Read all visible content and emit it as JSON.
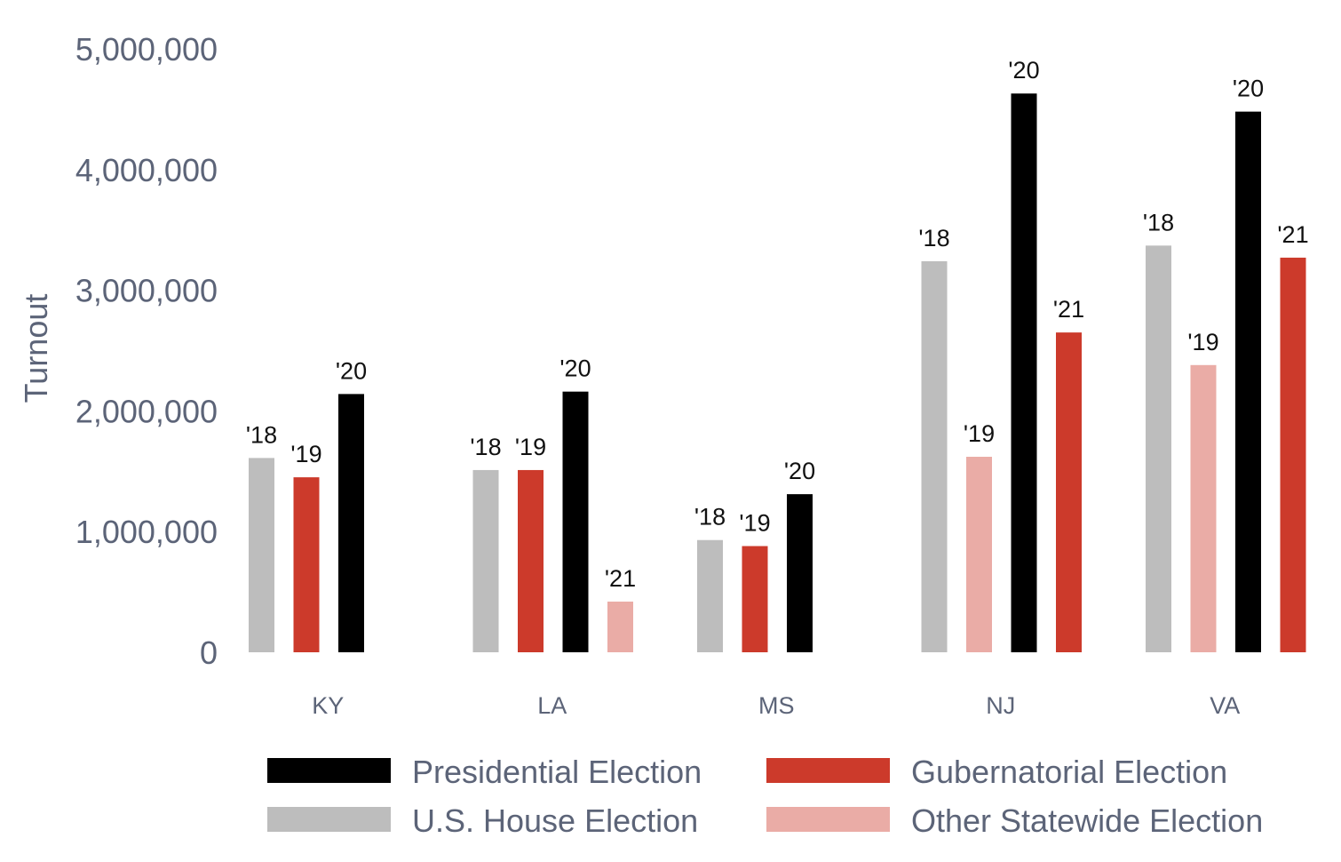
{
  "chart_data": {
    "type": "bar",
    "ylabel": "Turnout",
    "xlabel": "",
    "ylim": [
      0,
      5000000
    ],
    "yticks": [
      0,
      1000000,
      2000000,
      3000000,
      4000000,
      5000000
    ],
    "ytick_labels": [
      "0",
      "1,000,000",
      "2,000,000",
      "3,000,000",
      "4,000,000",
      "5,000,000"
    ],
    "grid": false,
    "legend_position": "bottom",
    "election_types": [
      {
        "key": "presidential",
        "name": "Presidential Election",
        "color": "#000000"
      },
      {
        "key": "gubernatorial",
        "name": "Gubernatorial Election",
        "color": "#cc3a2b"
      },
      {
        "key": "house",
        "name": "U.S. House Election",
        "color": "#bdbdbd"
      },
      {
        "key": "other",
        "name": "Other Statewide Election",
        "color": "#eaaca6"
      }
    ],
    "groups": [
      {
        "state": "KY",
        "bars": [
          {
            "label": "'18",
            "type": "house",
            "value": 1610000
          },
          {
            "label": "'19",
            "type": "gubernatorial",
            "value": 1450000
          },
          {
            "label": "'20",
            "type": "presidential",
            "value": 2140000
          }
        ]
      },
      {
        "state": "LA",
        "bars": [
          {
            "label": "'18",
            "type": "house",
            "value": 1510000
          },
          {
            "label": "'19",
            "type": "gubernatorial",
            "value": 1510000
          },
          {
            "label": "'20",
            "type": "presidential",
            "value": 2160000
          },
          {
            "label": "'21",
            "type": "other",
            "value": 420000
          }
        ]
      },
      {
        "state": "MS",
        "bars": [
          {
            "label": "'18",
            "type": "house",
            "value": 930000
          },
          {
            "label": "'19",
            "type": "gubernatorial",
            "value": 880000
          },
          {
            "label": "'20",
            "type": "presidential",
            "value": 1310000
          }
        ]
      },
      {
        "state": "NJ",
        "bars": [
          {
            "label": "'18",
            "type": "house",
            "value": 3240000
          },
          {
            "label": "'19",
            "type": "other",
            "value": 1620000
          },
          {
            "label": "'20",
            "type": "presidential",
            "value": 4630000
          },
          {
            "label": "'21",
            "type": "gubernatorial",
            "value": 2650000
          }
        ]
      },
      {
        "state": "VA",
        "bars": [
          {
            "label": "'18",
            "type": "house",
            "value": 3370000
          },
          {
            "label": "'19",
            "type": "other",
            "value": 2380000
          },
          {
            "label": "'20",
            "type": "presidential",
            "value": 4480000
          },
          {
            "label": "'21",
            "type": "gubernatorial",
            "value": 3270000
          }
        ]
      }
    ]
  }
}
